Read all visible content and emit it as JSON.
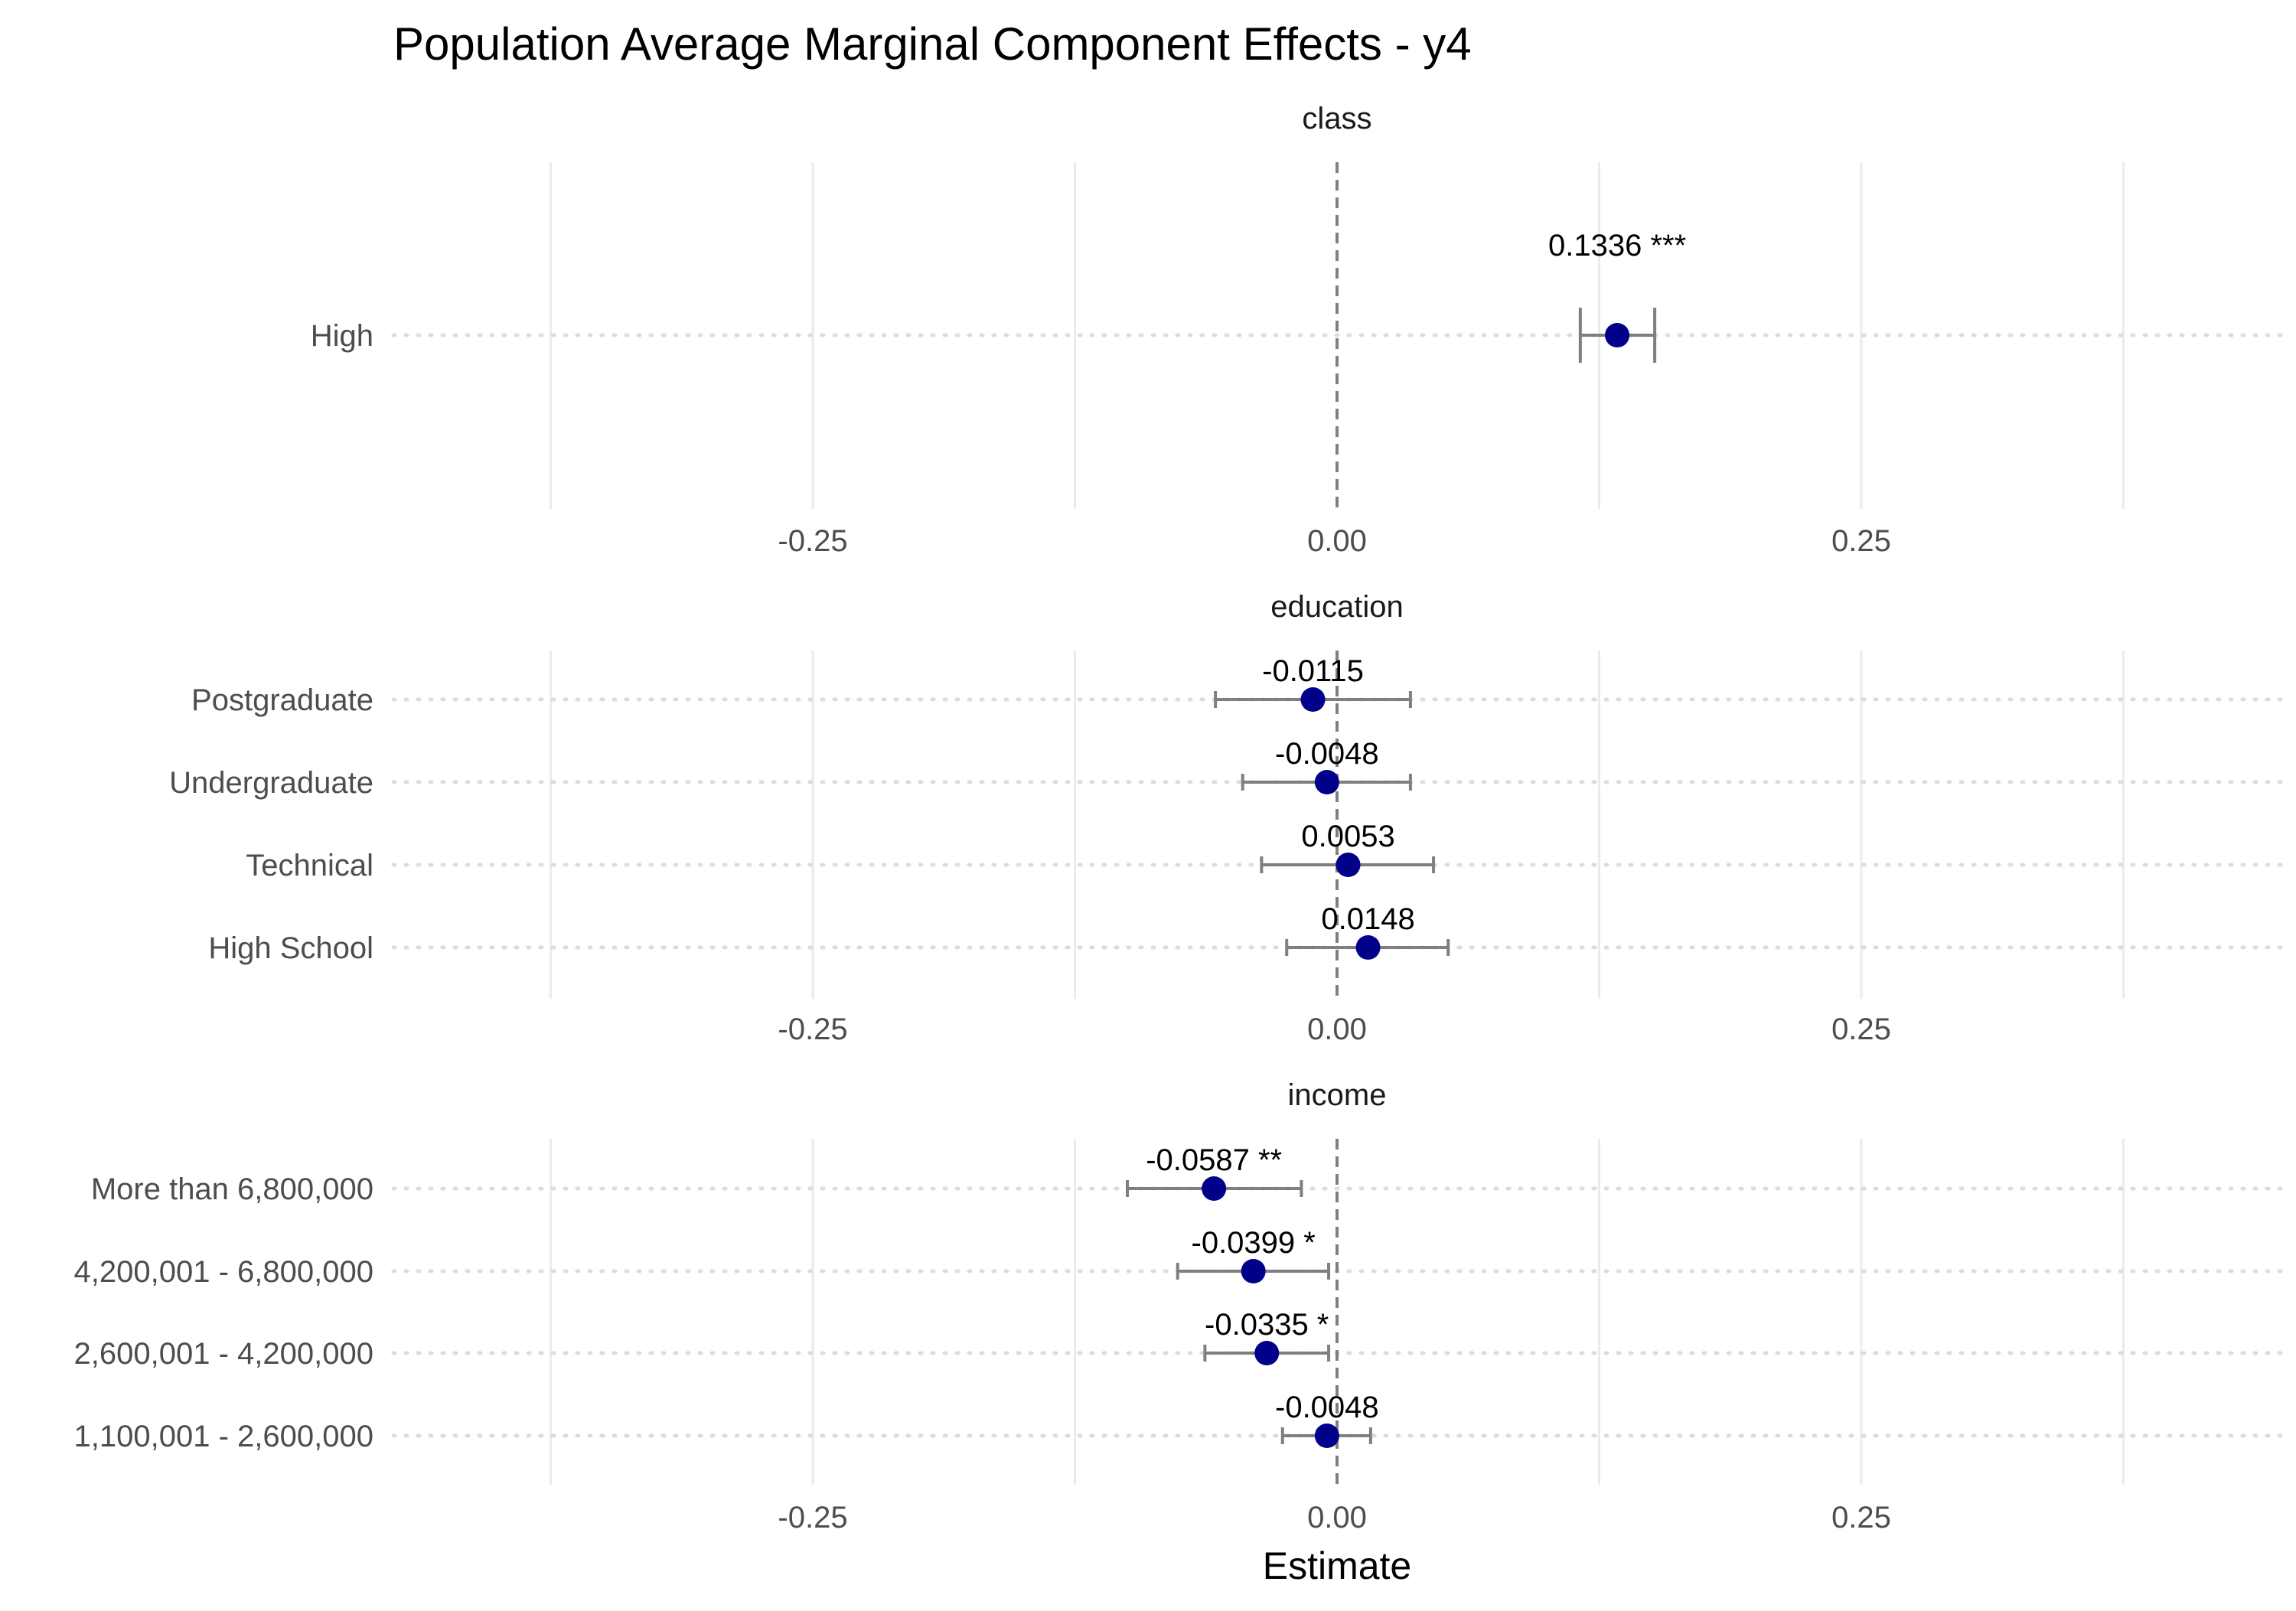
{
  "chart_data": {
    "type": "scatter",
    "title": "Population Average Marginal Component Effects - y4",
    "xlabel": "Estimate",
    "ylabel": "",
    "xlim": [
      -0.45,
      0.45
    ],
    "x_ticks": [
      -0.25,
      0.0,
      0.25
    ],
    "x_tick_labels": [
      "-0.25",
      "0.00",
      "0.25"
    ],
    "reference_line": 0,
    "grid": true,
    "colors": {
      "point": "#00008B",
      "errorbar": "#7f7f7f",
      "reference_line": "#7f7f7f",
      "grid": "#ebebeb"
    },
    "panels": [
      {
        "name": "class",
        "rows": [
          {
            "level": "High",
            "estimate": 0.1336,
            "lower": 0.116,
            "upper": 0.1515,
            "label": "0.1336 ***"
          }
        ]
      },
      {
        "name": "education",
        "rows": [
          {
            "level": "Postgraduate",
            "estimate": -0.0115,
            "lower": -0.058,
            "upper": 0.035,
            "label": "-0.0115"
          },
          {
            "level": "Undergraduate",
            "estimate": -0.0048,
            "lower": -0.045,
            "upper": 0.035,
            "label": "-0.0048"
          },
          {
            "level": "Technical",
            "estimate": 0.0053,
            "lower": -0.036,
            "upper": 0.046,
            "label": "0.0053"
          },
          {
            "level": "High School",
            "estimate": 0.0148,
            "lower": -0.024,
            "upper": 0.053,
            "label": "0.0148"
          }
        ]
      },
      {
        "name": "income",
        "rows": [
          {
            "level": "More than 6,800,000",
            "estimate": -0.0587,
            "lower": -0.1,
            "upper": -0.017,
            "label": "-0.0587 **"
          },
          {
            "level": "4,200,001 - 6,800,000",
            "estimate": -0.0399,
            "lower": -0.076,
            "upper": -0.004,
            "label": "-0.0399 *"
          },
          {
            "level": "2,600,001 - 4,200,000",
            "estimate": -0.0335,
            "lower": -0.063,
            "upper": -0.004,
            "label": "-0.0335 *"
          },
          {
            "level": "1,100,001 - 2,600,000",
            "estimate": -0.0048,
            "lower": -0.026,
            "upper": 0.016,
            "label": "-0.0048"
          }
        ]
      }
    ]
  }
}
